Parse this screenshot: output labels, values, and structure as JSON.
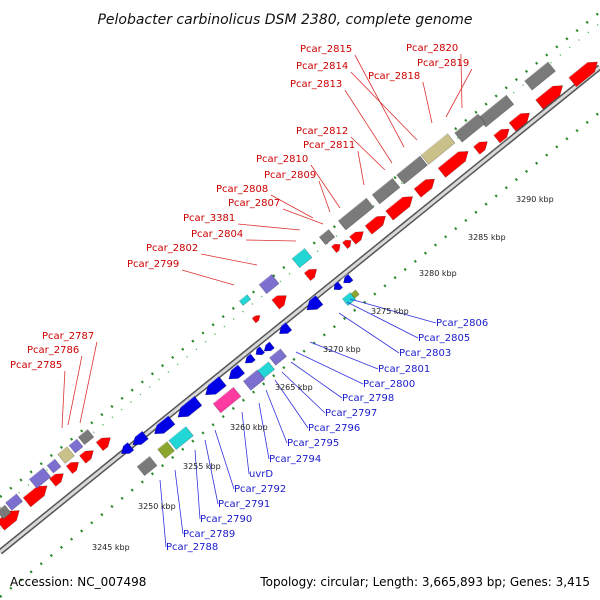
{
  "title": "Pelobacter carbinolicus DSM 2380, complete genome",
  "footer": {
    "accession": "Accession: NC_007498",
    "topology": "Topology: circular; Length: 3,665,893 bp; Genes: 3,415"
  },
  "colors": {
    "forward_gene": "#ff0000",
    "reverse_gene": "#0000e6",
    "pseudo_gray": "#7a7a7a",
    "purple": "#7b6fd0",
    "cyan": "#22d6d6",
    "olive": "#8aa62e",
    "magenta": "#ff3aa0",
    "khaki": "#c9c08a",
    "tick_green": "#2d8a2d",
    "red_label": "#cc0000",
    "blue_label": "#1a1acc"
  },
  "scale_labels": [
    "3245 kbp",
    "3250 kbp",
    "3255 kbp",
    "3260 kbp",
    "3265 kbp",
    "3270 kbp",
    "3275 kbp",
    "3280 kbp",
    "3285 kbp",
    "3290 kbp"
  ],
  "top_labels": [
    "Pcar_2815",
    "Pcar_2820",
    "Pcar_2814",
    "Pcar_2819",
    "Pcar_2818",
    "Pcar_2813",
    "Pcar_2812",
    "Pcar_2811",
    "Pcar_2810",
    "Pcar_2809",
    "Pcar_2808",
    "Pcar_2807",
    "Pcar_3381",
    "Pcar_2804",
    "Pcar_2802",
    "Pcar_2799",
    "Pcar_2787",
    "Pcar_2786",
    "Pcar_2785"
  ],
  "bottom_labels": [
    "Pcar_2806",
    "Pcar_2805",
    "Pcar_2803",
    "Pcar_2801",
    "Pcar_2800",
    "Pcar_2798",
    "Pcar_2797",
    "Pcar_2796",
    "Pcar_2795",
    "Pcar_2794",
    "uvrD",
    "Pcar_2792",
    "Pcar_2791",
    "Pcar_2790",
    "Pcar_2789",
    "Pcar_2788"
  ]
}
